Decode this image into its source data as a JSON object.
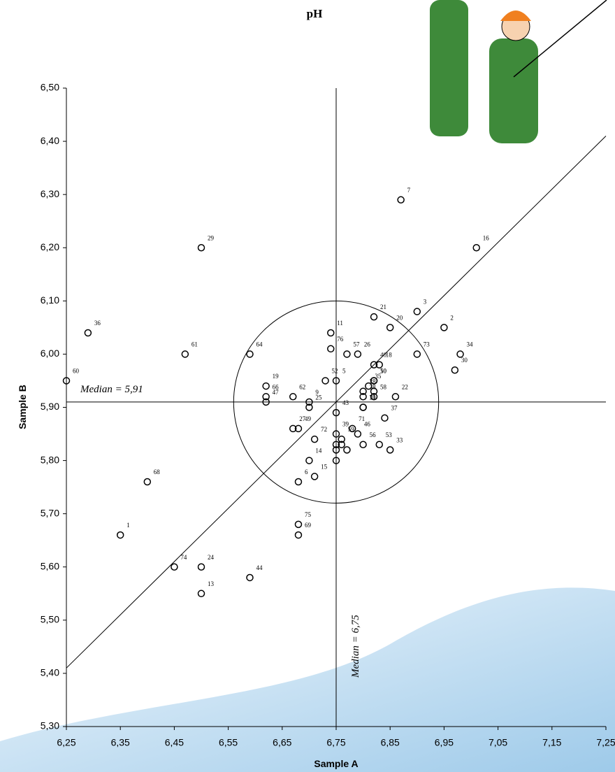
{
  "chart_data": {
    "type": "scatter",
    "title": "pH",
    "x_label": "Sample A",
    "y_label": "Sample B",
    "xlim": [
      6.25,
      7.25
    ],
    "ylim": [
      5.3,
      6.5
    ],
    "xticks": [
      {
        "value": 6.25,
        "label": "6,25"
      },
      {
        "value": 6.35,
        "label": "6,35"
      },
      {
        "value": 6.45,
        "label": "6,45"
      },
      {
        "value": 6.55,
        "label": "6,55"
      },
      {
        "value": 6.65,
        "label": "6,65"
      },
      {
        "value": 6.75,
        "label": "6,75"
      },
      {
        "value": 6.85,
        "label": "6,85"
      },
      {
        "value": 6.95,
        "label": "6,95"
      },
      {
        "value": 7.05,
        "label": "7,05"
      },
      {
        "value": 7.15,
        "label": "7,15"
      },
      {
        "value": 7.25,
        "label": "7,25"
      }
    ],
    "yticks": [
      {
        "value": 5.3,
        "label": "5,30"
      },
      {
        "value": 5.4,
        "label": "5,40"
      },
      {
        "value": 5.5,
        "label": "5,50"
      },
      {
        "value": 5.6,
        "label": "5,60"
      },
      {
        "value": 5.7,
        "label": "5,70"
      },
      {
        "value": 5.8,
        "label": "5,80"
      },
      {
        "value": 5.9,
        "label": "5,90"
      },
      {
        "value": 6.0,
        "label": "6,00"
      },
      {
        "value": 6.1,
        "label": "6,10"
      },
      {
        "value": 6.2,
        "label": "6,20"
      },
      {
        "value": 6.3,
        "label": "6,30"
      },
      {
        "value": 6.4,
        "label": "6,40"
      },
      {
        "value": 6.5,
        "label": "6,50"
      }
    ],
    "x": [
      6.35,
      6.95,
      6.9,
      6.75,
      6.68,
      6.87,
      6.7,
      6.82,
      6.74,
      6.5,
      6.7,
      6.71,
      7.01,
      6.83,
      6.62,
      6.85,
      6.82,
      6.86,
      6.5,
      6.7,
      6.79,
      6.67,
      6.8,
      6.5,
      6.97,
      6.8,
      6.85,
      6.98,
      6.81,
      6.29,
      6.84,
      6.8,
      6.75,
      6.82,
      6.75,
      6.59,
      6.79,
      6.62,
      6.68,
      6.82,
      6.73,
      6.83,
      6.8,
      6.77,
      6.82,
      6.76,
      6.25,
      6.47,
      6.67,
      6.59,
      6.62,
      6.4,
      6.68,
      6.8,
      6.78,
      6.71,
      6.9,
      6.45,
      6.68,
      6.74,
      6.75,
      6.76,
      6.75,
      6.77,
      6.75,
      6.82
    ],
    "y": [
      5.66,
      6.05,
      6.08,
      5.95,
      5.76,
      6.29,
      5.91,
      5.95,
      6.04,
      5.55,
      5.8,
      5.77,
      6.2,
      5.98,
      5.94,
      6.05,
      6.07,
      5.92,
      5.6,
      5.9,
      6.0,
      5.86,
      5.93,
      6.2,
      5.97,
      5.9,
      5.82,
      6.0,
      5.94,
      6.04,
      5.88,
      5.92,
      5.85,
      5.98,
      5.89,
      5.58,
      5.85,
      5.91,
      5.86,
      5.95,
      5.95,
      5.83,
      5.83,
      6.0,
      5.92,
      5.84,
      5.95,
      6.0,
      5.92,
      6.0,
      5.92,
      5.76,
      5.66,
      5.9,
      5.86,
      5.84,
      6.0,
      5.6,
      5.68,
      6.01,
      5.83,
      5.83,
      5.82,
      5.82,
      5.8,
      5.93
    ],
    "point_labels": [
      "1",
      "2",
      "3",
      "5",
      "6",
      "7",
      "9",
      "10",
      "11",
      "13",
      "14",
      "15",
      "16",
      "18",
      "19",
      "20",
      "21",
      "22",
      "24",
      "25",
      "26",
      "27",
      "28",
      "29",
      "30",
      "31",
      "33",
      "34",
      "35",
      "36",
      "37",
      "38",
      "39",
      "40",
      "43",
      "44",
      "46",
      "47",
      "49",
      "50",
      "52",
      "53",
      "56",
      "57",
      "58",
      "59",
      "60",
      "61",
      "62",
      "64",
      "66",
      "68",
      "69",
      "70",
      "71",
      "72",
      "73",
      "74",
      "75",
      "76",
      null,
      null,
      null,
      null,
      null,
      null
    ],
    "x_median": 6.75,
    "y_median": 5.91,
    "x_median_label": "Median = 6,75",
    "y_median_label": "Median = 5,91",
    "circle_radius": 0.19
  }
}
